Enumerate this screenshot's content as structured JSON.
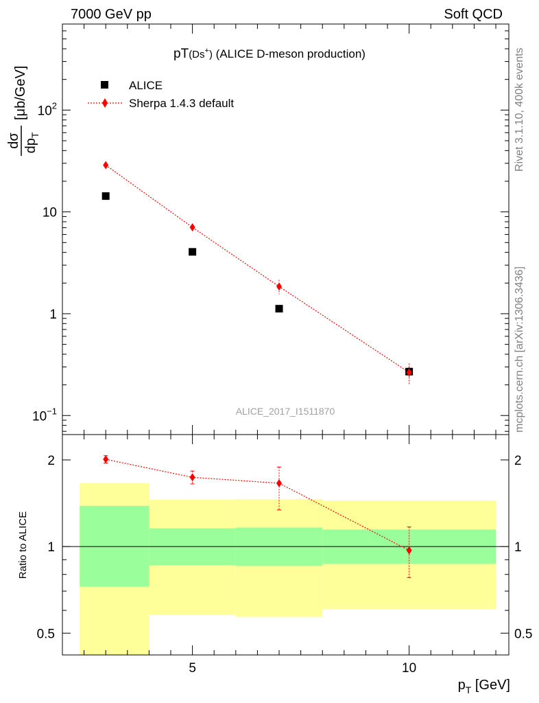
{
  "header": {
    "left_label": "7000 GeV pp",
    "right_label": "Soft QCD"
  },
  "side_text": {
    "rivet": "Rivet 3.1.10,  400k events",
    "mcplots": "mcplots.cern.ch [arXiv:1306.3436]"
  },
  "chart_data": [
    {
      "type": "scatter",
      "title": "pT(Ds⁺) (ALICE D-meson production)",
      "title_main": "pT",
      "title_particle": "(Ds",
      "title_sup": "+",
      "title_close": ")",
      "title_rest": " (ALICE D-meson production)",
      "watermark": "ALICE_2017_I1511870",
      "xlabel": "p_T [GeV]",
      "ylabel": "dσ/dp_T [μb/GeV]",
      "ylabel_unit": "[μb/GeV]",
      "ylabel_num": "dσ",
      "ylabel_den": "dp",
      "ylabel_sub": "T",
      "yscale": "log",
      "xlim": [
        2,
        12.3
      ],
      "ylim": [
        0.065,
        700
      ],
      "grid": false,
      "legend_position": "top-left",
      "y_ticks": [
        {
          "value": 100,
          "base": "10",
          "exp": "2"
        },
        {
          "value": 10,
          "base": "10",
          "exp": ""
        },
        {
          "value": 1,
          "base": "1",
          "exp": ""
        },
        {
          "value": 0.1,
          "base": "10",
          "exp": "−1"
        }
      ],
      "series": [
        {
          "name": "ALICE",
          "marker": "square",
          "color": "#000000",
          "x": [
            3,
            5,
            7,
            10
          ],
          "y": [
            14.3,
            4.05,
            1.12,
            0.27
          ],
          "xerr": [
            1,
            1,
            1,
            2
          ],
          "yerr": [
            0,
            0,
            0,
            0.03
          ]
        },
        {
          "name": "Sherpa 1.4.3 default",
          "marker": "diamond",
          "line": "dotted",
          "color": "#ff0000",
          "x": [
            3,
            5,
            7,
            10
          ],
          "y": [
            28.8,
            7.05,
            1.85,
            0.265
          ],
          "yerr": [
            1.5,
            0.6,
            0.3,
            0.06
          ]
        }
      ]
    },
    {
      "type": "scatter",
      "ylabel": "Ratio to ALICE",
      "yscale": "log",
      "xlim": [
        2,
        12.3
      ],
      "ylim": [
        0.42,
        2.45
      ],
      "x_ticks": [
        5,
        10
      ],
      "y_ticks": [
        0.5,
        1,
        2
      ],
      "reference_line": 1,
      "bands": [
        {
          "x0": 2,
          "x1": 4,
          "stat_lo": 0.725,
          "stat_hi": 1.385,
          "total_lo": 0.42,
          "total_hi": 1.66
        },
        {
          "x0": 4,
          "x1": 6,
          "stat_lo": 0.862,
          "stat_hi": 1.157,
          "total_lo": 0.578,
          "total_hi": 1.455
        },
        {
          "x0": 6,
          "x1": 8,
          "stat_lo": 0.856,
          "stat_hi": 1.164,
          "total_lo": 0.57,
          "total_hi": 1.462
        },
        {
          "x0": 8,
          "x1": 12.3,
          "stat_lo": 0.872,
          "stat_hi": 1.146,
          "total_lo": 0.607,
          "total_hi": 1.445
        }
      ],
      "series": [
        {
          "name": "Sherpa 1.4.3 default",
          "color": "#ff0000",
          "x": [
            3,
            5,
            7,
            10
          ],
          "y": [
            2.01,
            1.74,
            1.66,
            0.97
          ],
          "yerr_lo": [
            0.06,
            0.09,
            0.32,
            0.19
          ],
          "yerr_hi": [
            0.06,
            0.09,
            0.23,
            0.2
          ]
        }
      ]
    }
  ],
  "colors": {
    "stat_band": "#9aff9a",
    "total_band": "#ffff9a",
    "mc": "#ff0000",
    "data": "#000000",
    "side_text": "#808080"
  }
}
